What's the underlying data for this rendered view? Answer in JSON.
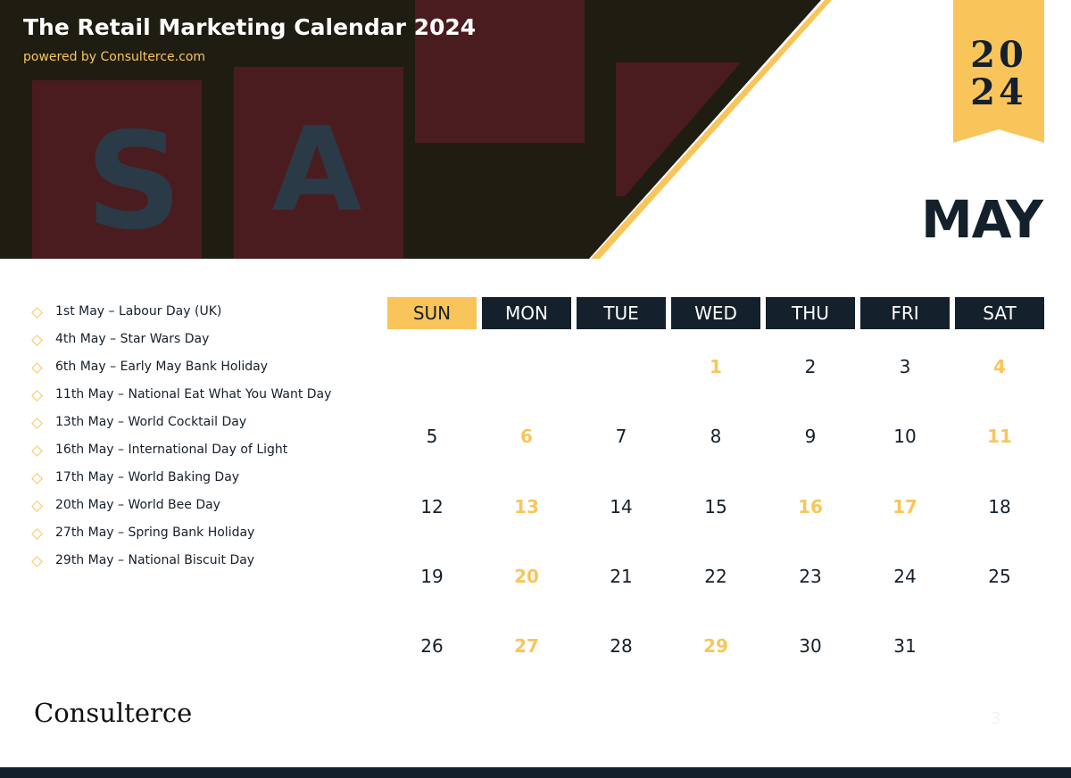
{
  "header": {
    "title": "The Retail Marketing Calendar 2024",
    "subtitle": "powered by Consulterce.com",
    "year_lines": [
      "20",
      "24"
    ],
    "month": "MAY"
  },
  "events": [
    "1st May – Labour Day (UK)",
    "4th May – Star Wars Day",
    "6th May – Early May Bank Holiday",
    "11th May – National Eat What You Want Day",
    "13th May – World Cocktail Day",
    "16th May – International Day of Light",
    "17th May – World Baking Day",
    "20th May – World Bee Day",
    "27th May – Spring Bank Holiday",
    "29th May – National Biscuit Day"
  ],
  "calendar": {
    "weekdays": [
      "SUN",
      "MON",
      "TUE",
      "WED",
      "THU",
      "FRI",
      "SAT"
    ],
    "weeks": [
      [
        null,
        null,
        null,
        1,
        2,
        3,
        4
      ],
      [
        5,
        6,
        7,
        8,
        9,
        10,
        11
      ],
      [
        12,
        13,
        14,
        15,
        16,
        17,
        18
      ],
      [
        19,
        20,
        21,
        22,
        23,
        24,
        25
      ],
      [
        26,
        27,
        28,
        29,
        30,
        31,
        null
      ]
    ],
    "highlighted_days": [
      1,
      4,
      6,
      11,
      13,
      16,
      17,
      20,
      27,
      29
    ],
    "highlight_color": "#f9c55b"
  },
  "footer": {
    "brand": "Consulterce",
    "page_number": 3
  }
}
